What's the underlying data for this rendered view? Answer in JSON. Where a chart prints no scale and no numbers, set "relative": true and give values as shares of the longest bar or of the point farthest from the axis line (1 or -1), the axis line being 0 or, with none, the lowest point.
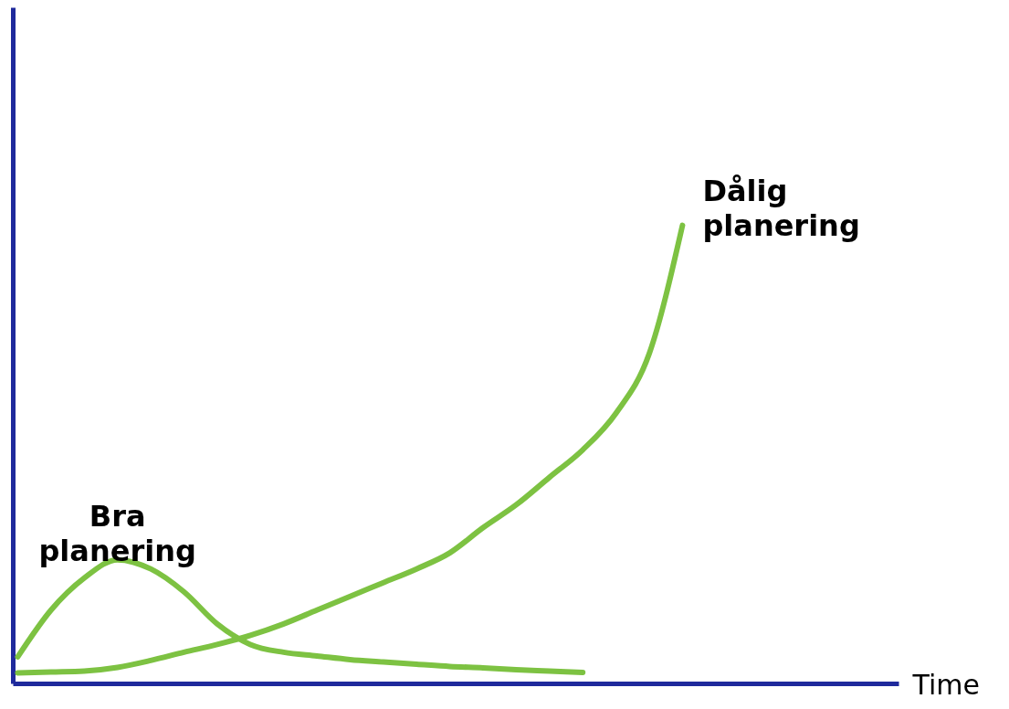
{
  "chart_data": {
    "type": "line",
    "relative": true,
    "xlabel": "Time",
    "legend": false,
    "grid": false,
    "marker": "none",
    "tick_labels": false,
    "line_style": "solid",
    "categories": [
      null,
      null,
      null,
      null,
      null,
      null,
      null,
      null,
      null,
      null,
      null,
      null,
      null,
      null,
      null,
      null,
      null,
      null,
      null,
      null,
      null,
      null,
      null,
      null,
      null,
      null,
      null
    ],
    "series": [
      {
        "name": "Bra planering",
        "color": "#7dc242",
        "values": [
          0.058,
          0.16,
          0.23,
          0.27,
          0.25,
          0.2,
          0.13,
          0.085,
          0.068,
          0.06,
          0.052,
          0.047,
          0.042,
          0.037,
          0.034,
          0.03,
          0.027,
          0.024,
          null,
          null,
          null,
          null,
          null,
          null,
          null,
          null,
          null
        ]
      },
      {
        "name": "Dålig planering",
        "color": "#7dc242",
        "values": [
          0.023,
          0.025,
          0.027,
          0.035,
          0.05,
          0.068,
          0.085,
          0.105,
          0.13,
          0.16,
          0.19,
          0.22,
          0.25,
          0.285,
          0.34,
          0.39,
          0.45,
          0.51,
          0.59,
          0.72,
          1,
          null,
          null,
          null,
          null,
          null,
          null
        ]
      }
    ]
  }
}
